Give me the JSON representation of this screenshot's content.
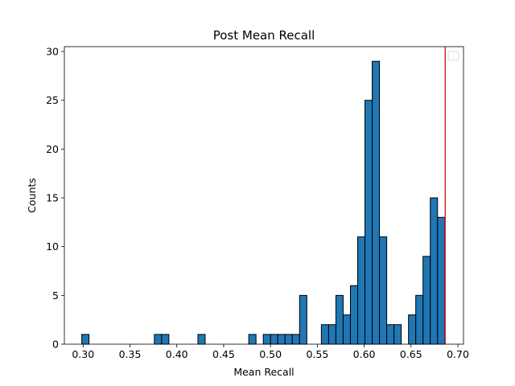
{
  "chart_data": {
    "type": "bar",
    "title": "Post Mean Recall",
    "xlabel": "Mean Recall",
    "ylabel": "Counts",
    "xlim": [
      0.28,
      0.706
    ],
    "ylim": [
      0,
      30.5
    ],
    "bin_width": 0.00775,
    "bins": [
      {
        "x0": 0.29855,
        "count": 1
      },
      {
        "x0": 0.37605,
        "count": 1
      },
      {
        "x0": 0.3838,
        "count": 1
      },
      {
        "x0": 0.42255,
        "count": 1
      },
      {
        "x0": 0.4768,
        "count": 1
      },
      {
        "x0": 0.4923,
        "count": 1
      },
      {
        "x0": 0.50005,
        "count": 1
      },
      {
        "x0": 0.5078,
        "count": 1
      },
      {
        "x0": 0.51555,
        "count": 1
      },
      {
        "x0": 0.5233,
        "count": 1
      },
      {
        "x0": 0.53105,
        "count": 5
      },
      {
        "x0": 0.5543,
        "count": 2
      },
      {
        "x0": 0.56205,
        "count": 2
      },
      {
        "x0": 0.5698,
        "count": 5
      },
      {
        "x0": 0.57755,
        "count": 3
      },
      {
        "x0": 0.5853,
        "count": 6
      },
      {
        "x0": 0.59305,
        "count": 11
      },
      {
        "x0": 0.6008,
        "count": 25
      },
      {
        "x0": 0.60855,
        "count": 29
      },
      {
        "x0": 0.6163,
        "count": 11
      },
      {
        "x0": 0.62405,
        "count": 2
      },
      {
        "x0": 0.6318,
        "count": 2
      },
      {
        "x0": 0.6473,
        "count": 3
      },
      {
        "x0": 0.65505,
        "count": 5
      },
      {
        "x0": 0.6628,
        "count": 9
      },
      {
        "x0": 0.67055,
        "count": 15
      },
      {
        "x0": 0.6783,
        "count": 13
      }
    ],
    "xticks": [
      {
        "value": 0.3,
        "label": "0.30"
      },
      {
        "value": 0.35,
        "label": "0.35"
      },
      {
        "value": 0.4,
        "label": "0.40"
      },
      {
        "value": 0.45,
        "label": "0.45"
      },
      {
        "value": 0.5,
        "label": "0.50"
      },
      {
        "value": 0.55,
        "label": "0.55"
      },
      {
        "value": 0.6,
        "label": "0.60"
      },
      {
        "value": 0.65,
        "label": "0.65"
      },
      {
        "value": 0.7,
        "label": "0.70"
      }
    ],
    "yticks": [
      {
        "value": 0,
        "label": "0"
      },
      {
        "value": 5,
        "label": "5"
      },
      {
        "value": 10,
        "label": "10"
      },
      {
        "value": 15,
        "label": "15"
      },
      {
        "value": 20,
        "label": "20"
      },
      {
        "value": 25,
        "label": "25"
      },
      {
        "value": 30,
        "label": "30"
      }
    ],
    "reference_line": {
      "x": 0.6865,
      "color": "#d62728"
    },
    "bar_color": "#1f77b4",
    "bar_edge_color": "#000000",
    "grid": false,
    "legend": {
      "placement": "top-right",
      "entries": []
    }
  }
}
